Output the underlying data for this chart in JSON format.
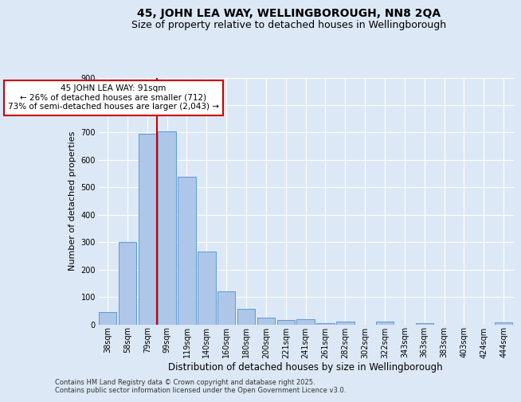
{
  "title": "45, JOHN LEA WAY, WELLINGBOROUGH, NN8 2QA",
  "subtitle": "Size of property relative to detached houses in Wellingborough",
  "xlabel": "Distribution of detached houses by size in Wellingborough",
  "ylabel": "Number of detached properties",
  "categories": [
    "38sqm",
    "58sqm",
    "79sqm",
    "99sqm",
    "119sqm",
    "140sqm",
    "160sqm",
    "180sqm",
    "200sqm",
    "221sqm",
    "241sqm",
    "261sqm",
    "282sqm",
    "302sqm",
    "322sqm",
    "343sqm",
    "363sqm",
    "383sqm",
    "403sqm",
    "424sqm",
    "444sqm"
  ],
  "values": [
    45,
    300,
    695,
    705,
    540,
    265,
    120,
    58,
    25,
    15,
    18,
    5,
    9,
    0,
    10,
    0,
    5,
    0,
    0,
    0,
    8
  ],
  "bar_color": "#aec6e8",
  "bar_edge_color": "#5b9bd5",
  "annotation_line1": "45 JOHN LEA WAY: 91sqm",
  "annotation_line2": "← 26% of detached houses are smaller (712)",
  "annotation_line3": "73% of semi-detached houses are larger (2,043) →",
  "annotation_box_color": "#ffffff",
  "annotation_box_edge_color": "#cc0000",
  "vline_color": "#cc0000",
  "ylim": [
    0,
    900
  ],
  "yticks": [
    0,
    100,
    200,
    300,
    400,
    500,
    600,
    700,
    800,
    900
  ],
  "bg_color": "#dce8f5",
  "grid_color": "#ffffff",
  "footer": "Contains HM Land Registry data © Crown copyright and database right 2025.\nContains public sector information licensed under the Open Government Licence v3.0.",
  "title_fontsize": 10,
  "subtitle_fontsize": 9,
  "xlabel_fontsize": 8.5,
  "ylabel_fontsize": 8,
  "tick_fontsize": 7,
  "annotation_fontsize": 7.5,
  "footer_fontsize": 6
}
